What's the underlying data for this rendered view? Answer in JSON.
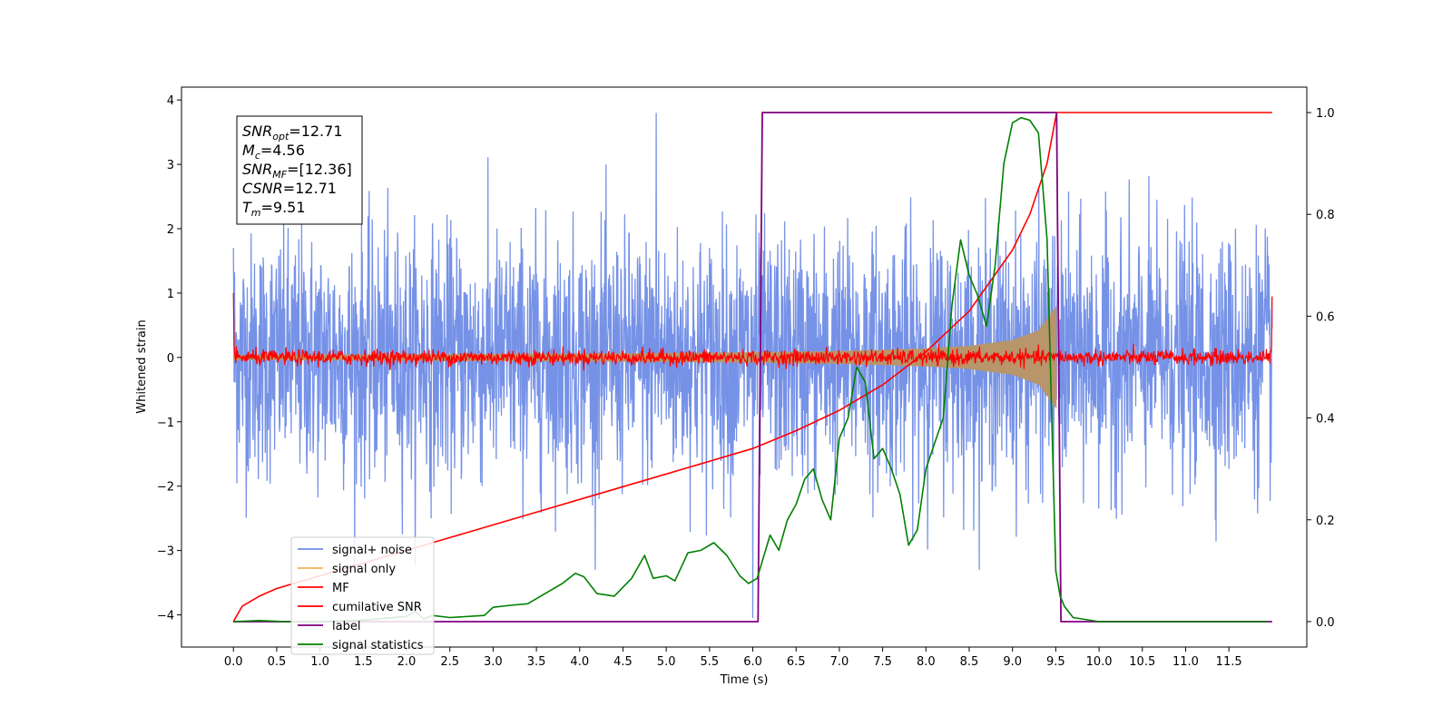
{
  "chart_data": {
    "type": "line",
    "xlabel": "Time (s)",
    "ylabel": "Whitened strain",
    "xlim": [
      -0.6,
      12.4
    ],
    "ylim": [
      -4.5,
      4.2
    ],
    "y2lim": [
      -0.05,
      1.05
    ],
    "x_ticks": [
      "0.0",
      "0.5",
      "1.0",
      "1.5",
      "2.0",
      "2.5",
      "3.0",
      "3.5",
      "4.0",
      "4.5",
      "5.0",
      "5.5",
      "6.0",
      "6.5",
      "7.0",
      "7.5",
      "8.0",
      "8.5",
      "9.0",
      "9.5",
      "10.0",
      "10.5",
      "11.0",
      "11.5"
    ],
    "x_tick_values": [
      0,
      0.5,
      1,
      1.5,
      2,
      2.5,
      3,
      3.5,
      4,
      4.5,
      5,
      5.5,
      6,
      6.5,
      7,
      7.5,
      8,
      8.5,
      9,
      9.5,
      10,
      10.5,
      11,
      11.5
    ],
    "y_ticks": [
      "−4",
      "−3",
      "−2",
      "−1",
      "0",
      "1",
      "2",
      "3",
      "4"
    ],
    "y_tick_values": [
      -4,
      -3,
      -2,
      -1,
      0,
      1,
      2,
      3,
      4
    ],
    "y2_ticks": [
      "0.0",
      "0.2",
      "0.4",
      "0.6",
      "0.8",
      "1.0"
    ],
    "y2_tick_values": [
      0,
      0.2,
      0.4,
      0.6,
      0.8,
      1.0
    ],
    "stats_box": [
      {
        "sym": "SNR",
        "sub": "opt",
        "val": "=12.71"
      },
      {
        "sym": "M",
        "sub": "c",
        "val": "=4.56"
      },
      {
        "sym": "SNR",
        "sub": "MF",
        "val": "=[12.36]"
      },
      {
        "sym": "CSNR",
        "sub": "",
        "val": "=12.71"
      },
      {
        "sym": "T",
        "sub": "m",
        "val": "=9.51"
      }
    ],
    "legend": {
      "placement": "lower-left",
      "entries": [
        {
          "label": "signal+ noise",
          "color": "#6f8ce6"
        },
        {
          "label": "signal only",
          "color": "#f5b35a"
        },
        {
          "label": "MF",
          "color": "#ff0000"
        },
        {
          "label": "cumilative SNR",
          "color": "#ff0000"
        },
        {
          "label": "label",
          "color": "#800080"
        },
        {
          "label": "signal statistics",
          "color": "#008000"
        }
      ]
    },
    "series": [
      {
        "name": "signal+ noise",
        "axis": "left",
        "color": "#6f8ce6",
        "x_range": [
          0,
          12
        ],
        "style": "noise",
        "amplitude_std": 0.95,
        "peak_max": 3.8,
        "peak_min": -4.05
      },
      {
        "name": "signal only",
        "axis": "left",
        "color": "#b8956a",
        "style": "chirp",
        "x_range": [
          0,
          9.51
        ],
        "envelope": {
          "x": [
            0,
            2,
            4,
            6,
            7,
            8,
            8.5,
            9,
            9.3,
            9.51
          ],
          "y": [
            0.04,
            0.05,
            0.06,
            0.08,
            0.1,
            0.14,
            0.18,
            0.27,
            0.42,
            0.8
          ]
        }
      },
      {
        "name": "MF",
        "axis": "left",
        "color": "#ff0000",
        "style": "noise",
        "x_range": [
          0,
          12
        ],
        "amplitude_std": 0.06,
        "start_value": 1.0,
        "end_value": 0.95
      },
      {
        "name": "cumilative SNR",
        "axis": "right",
        "color": "#ff0000",
        "x": [
          0,
          0.1,
          0.3,
          0.5,
          1,
          1.5,
          2,
          2.5,
          3,
          3.5,
          4,
          4.5,
          5,
          5.5,
          6,
          6.5,
          7,
          7.5,
          8,
          8.5,
          9,
          9.2,
          9.4,
          9.51,
          12
        ],
        "y": [
          0,
          0.03,
          0.05,
          0.065,
          0.09,
          0.115,
          0.14,
          0.165,
          0.19,
          0.215,
          0.24,
          0.265,
          0.29,
          0.315,
          0.34,
          0.375,
          0.415,
          0.465,
          0.53,
          0.61,
          0.73,
          0.8,
          0.9,
          1.0,
          1.0
        ]
      },
      {
        "name": "label",
        "axis": "right",
        "color": "#800080",
        "x": [
          0,
          6.06,
          6.11,
          9.51,
          9.56,
          12
        ],
        "y": [
          0,
          0,
          1,
          1,
          0,
          0
        ]
      },
      {
        "name": "signal statistics",
        "axis": "right",
        "color": "#008000",
        "x": [
          0,
          0.3,
          0.6,
          1,
          1.5,
          2,
          2.1,
          2.2,
          2.3,
          2.5,
          2.9,
          3.0,
          3.2,
          3.4,
          3.6,
          3.8,
          3.95,
          4.05,
          4.2,
          4.4,
          4.6,
          4.75,
          4.85,
          5.0,
          5.1,
          5.25,
          5.4,
          5.55,
          5.7,
          5.85,
          5.95,
          6.05,
          6.2,
          6.3,
          6.4,
          6.5,
          6.6,
          6.7,
          6.8,
          6.9,
          7.0,
          7.1,
          7.2,
          7.3,
          7.4,
          7.5,
          7.6,
          7.7,
          7.8,
          7.9,
          8.0,
          8.1,
          8.2,
          8.3,
          8.4,
          8.5,
          8.6,
          8.7,
          8.8,
          8.9,
          9.0,
          9.1,
          9.2,
          9.3,
          9.4,
          9.5,
          9.55,
          9.6,
          9.7,
          10,
          11,
          11.95
        ],
        "y": [
          0,
          0.002,
          0,
          0,
          0.003,
          0.01,
          0.02,
          0.005,
          0.012,
          0.008,
          0.012,
          0.028,
          0.032,
          0.035,
          0.055,
          0.075,
          0.095,
          0.088,
          0.055,
          0.05,
          0.085,
          0.13,
          0.085,
          0.09,
          0.08,
          0.135,
          0.14,
          0.155,
          0.13,
          0.09,
          0.075,
          0.085,
          0.17,
          0.14,
          0.2,
          0.23,
          0.28,
          0.3,
          0.24,
          0.2,
          0.36,
          0.4,
          0.5,
          0.47,
          0.32,
          0.34,
          0.3,
          0.25,
          0.15,
          0.18,
          0.3,
          0.35,
          0.4,
          0.62,
          0.75,
          0.68,
          0.64,
          0.58,
          0.7,
          0.9,
          0.98,
          0.99,
          0.985,
          0.96,
          0.75,
          0.1,
          0.05,
          0.03,
          0.008,
          0,
          0,
          0
        ]
      }
    ]
  }
}
